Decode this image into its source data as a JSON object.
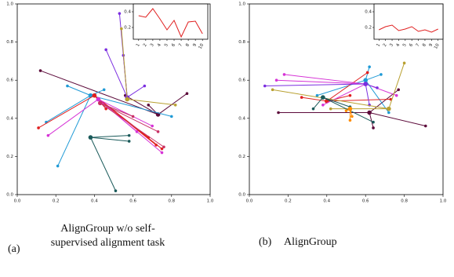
{
  "chart_data": [
    {
      "type": "scatter",
      "caption_label": "(a)",
      "caption": "AlignGroup w/o self-supervised alignment task",
      "xlim": [
        0,
        1
      ],
      "ylim": [
        0,
        1
      ],
      "xticks": [
        {
          "value": 0,
          "label": "0.0"
        },
        0.2,
        0.4,
        0.6,
        0.8,
        {
          "value": 1,
          "label": "1.0"
        }
      ],
      "yticks": [
        {
          "value": 0,
          "label": "0.0"
        },
        0.2,
        0.4,
        0.6,
        0.8,
        {
          "value": 1,
          "label": "1.0"
        }
      ],
      "series": [
        {
          "color": "#5c0a3a",
          "x": [
            0.73,
            0.12,
            0.88,
            0.56,
            0.68
          ],
          "y": [
            0.42,
            0.65,
            0.53,
            0.52,
            0.47
          ]
        },
        {
          "color": "#1f9ad6",
          "x": [
            0.38,
            0.15,
            0.26,
            0.21,
            0.8,
            0.45
          ],
          "y": [
            0.52,
            0.38,
            0.57,
            0.15,
            0.41,
            0.55
          ]
        },
        {
          "color": "#e02020",
          "x": [
            0.4,
            0.11,
            0.75,
            0.72,
            0.68,
            0.46
          ],
          "y": [
            0.52,
            0.35,
            0.24,
            0.26,
            0.3,
            0.45
          ]
        },
        {
          "color": "#d633d6",
          "x": [
            0.42,
            0.16,
            0.75,
            0.62,
            0.7
          ],
          "y": [
            0.5,
            0.31,
            0.22,
            0.33,
            0.36
          ]
        },
        {
          "color": "#7b2ee0",
          "x": [
            0.57,
            0.53,
            0.46,
            0.66,
            0.55
          ],
          "y": [
            0.51,
            0.95,
            0.76,
            0.57,
            0.73
          ]
        },
        {
          "color": "#b8a030",
          "x": [
            0.57,
            0.54,
            0.82
          ],
          "y": [
            0.5,
            0.87,
            0.47
          ]
        },
        {
          "color": "#1a5a5a",
          "x": [
            0.38,
            0.51,
            0.58,
            0.58
          ],
          "y": [
            0.3,
            0.02,
            0.28,
            0.31
          ]
        },
        {
          "color": "#c83064",
          "x": [
            0.43,
            0.6,
            0.73,
            0.76
          ],
          "y": [
            0.48,
            0.41,
            0.33,
            0.25
          ]
        }
      ]
    },
    {
      "type": "line",
      "color": "#e02020",
      "categories": [
        "1",
        "2",
        "3",
        "4",
        "5",
        "6",
        "7",
        "8",
        "9",
        "10"
      ],
      "values": [
        0.35,
        0.33,
        0.44,
        0.31,
        0.17,
        0.29,
        0.08,
        0.27,
        0.28,
        0.12
      ],
      "ylim": [
        0.05,
        0.5
      ],
      "yticks": [
        0.2,
        0.4
      ]
    },
    {
      "type": "scatter",
      "caption_label": "(b)",
      "caption": "AlignGroup",
      "xlim": [
        0,
        1
      ],
      "ylim": [
        0,
        1
      ],
      "xticks": [
        {
          "value": 0,
          "label": "0.0"
        },
        0.2,
        0.4,
        0.6,
        0.8,
        {
          "value": 1,
          "label": "1.0"
        }
      ],
      "yticks": [
        {
          "value": 0,
          "label": "0.0"
        },
        0.2,
        0.4,
        0.6,
        0.8,
        {
          "value": 1,
          "label": "1.0"
        }
      ],
      "series": [
        {
          "color": "#5c0a3a",
          "x": [
            0.62,
            0.15,
            0.91,
            0.64,
            0.77
          ],
          "y": [
            0.43,
            0.43,
            0.36,
            0.35,
            0.55
          ]
        },
        {
          "color": "#1f9ad6",
          "x": [
            0.6,
            0.35,
            0.62,
            0.72,
            0.68
          ],
          "y": [
            0.6,
            0.52,
            0.67,
            0.43,
            0.63
          ]
        },
        {
          "color": "#e02020",
          "x": [
            0.4,
            0.27,
            0.61,
            0.52,
            0.73
          ],
          "y": [
            0.49,
            0.51,
            0.64,
            0.52,
            0.5
          ]
        },
        {
          "color": "#d633d6",
          "x": [
            0.6,
            0.14,
            0.18,
            0.38,
            0.76
          ],
          "y": [
            0.58,
            0.6,
            0.63,
            0.47,
            0.52
          ]
        },
        {
          "color": "#7b2ee0",
          "x": [
            0.6,
            0.08,
            0.62,
            0.66
          ],
          "y": [
            0.58,
            0.57,
            0.47,
            0.56
          ]
        },
        {
          "color": "#b8a030",
          "x": [
            0.72,
            0.8,
            0.12,
            0.42
          ],
          "y": [
            0.45,
            0.69,
            0.55,
            0.45
          ]
        },
        {
          "color": "#1a5a5a",
          "x": [
            0.38,
            0.33,
            0.64,
            0.52
          ],
          "y": [
            0.51,
            0.45,
            0.38,
            0.46
          ]
        },
        {
          "color": "#ff8c00",
          "x": [
            0.52,
            0.52,
            0.5,
            0.53
          ],
          "y": [
            0.45,
            0.39,
            0.44,
            0.41
          ]
        }
      ]
    },
    {
      "type": "line",
      "color": "#e02020",
      "categories": [
        "1",
        "2",
        "3",
        "4",
        "5",
        "6",
        "7",
        "8",
        "9",
        "10"
      ],
      "values": [
        0.17,
        0.21,
        0.23,
        0.16,
        0.18,
        0.21,
        0.15,
        0.17,
        0.14,
        0.18
      ],
      "ylim": [
        0.05,
        0.5
      ],
      "yticks": [
        0.2,
        0.4
      ]
    }
  ]
}
